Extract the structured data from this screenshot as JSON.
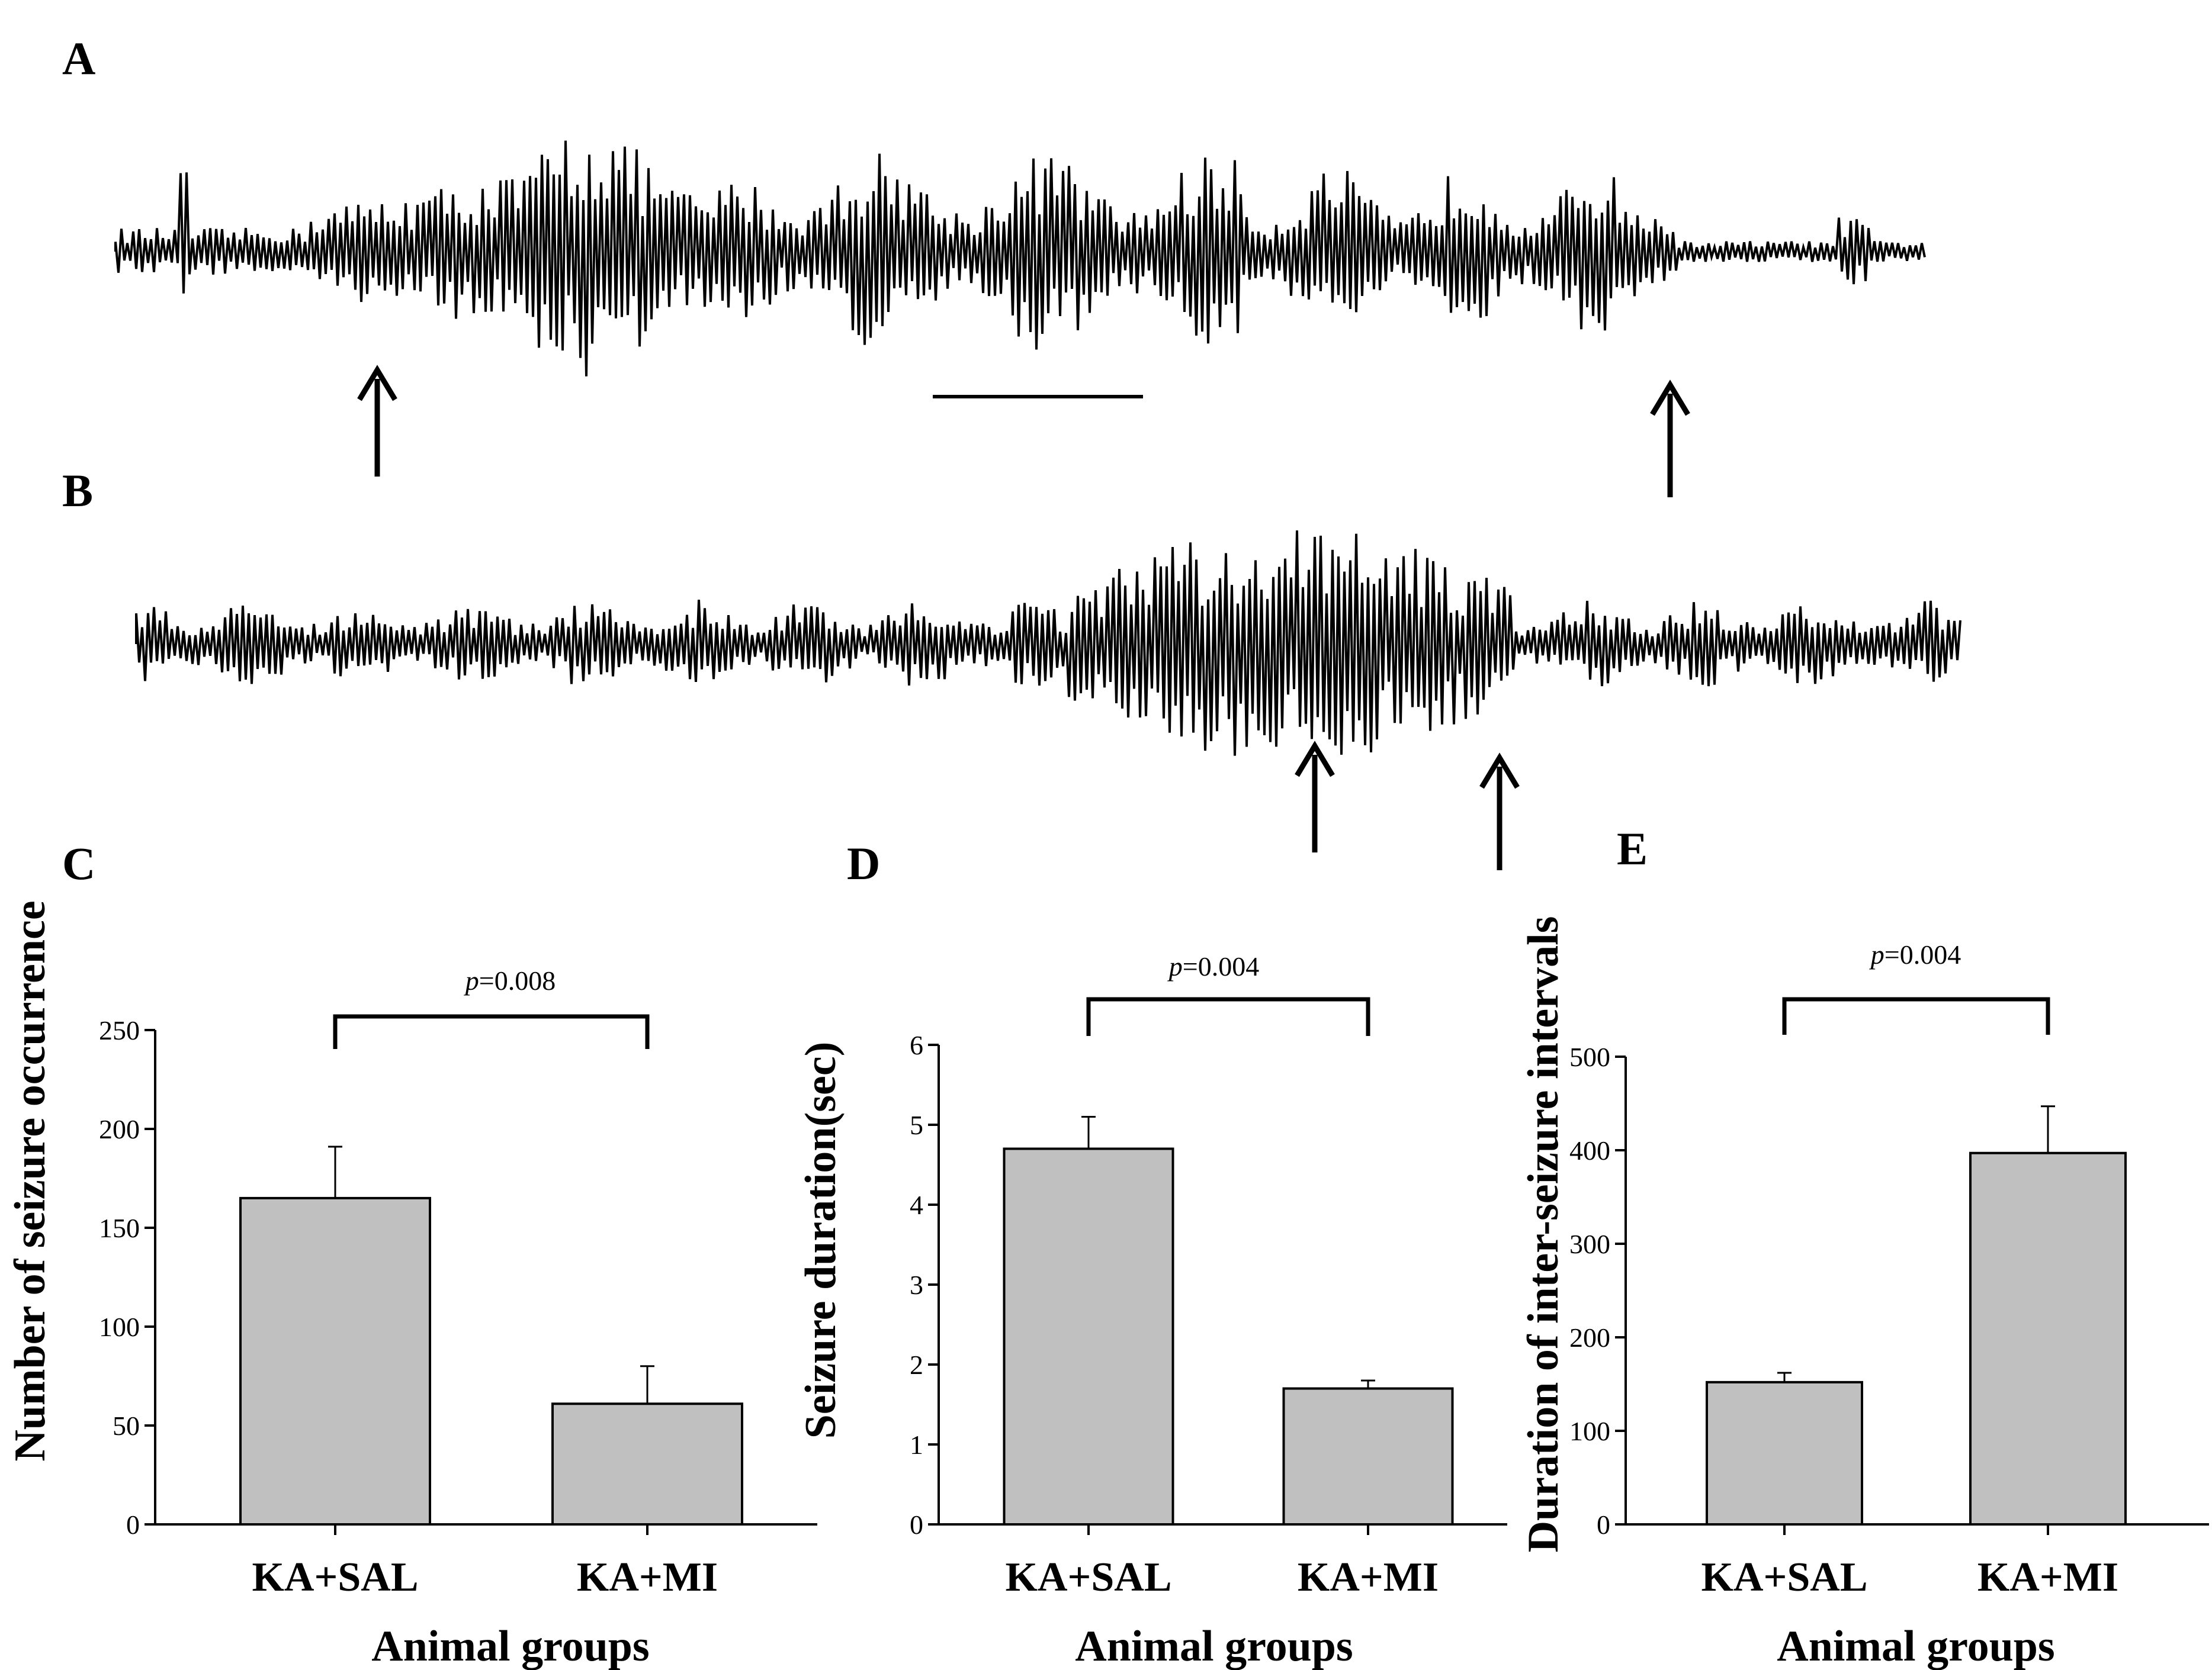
{
  "panels": {
    "a_letter": "A",
    "b_letter": "B"
  },
  "chart_data": [
    {
      "type": "bar",
      "panel": "C",
      "categories": [
        "KA+SAL",
        "KA+MI"
      ],
      "values": [
        165,
        61
      ],
      "errors": [
        26,
        19
      ],
      "xlabel": "Animal groups",
      "ylabel": "Number of seizure occurrence",
      "ylim": [
        0,
        250
      ],
      "yticks": [
        "0",
        "50",
        "100",
        "150",
        "200",
        "250"
      ],
      "significance": {
        "p_symbol": "p",
        "p_value": "=0.008"
      },
      "bar_color": "#c0c0c0",
      "grid": false
    },
    {
      "type": "bar",
      "panel": "D",
      "categories": [
        "KA+SAL",
        "KA+MI"
      ],
      "values": [
        4.7,
        1.7
      ],
      "errors": [
        0.4,
        0.1
      ],
      "xlabel": "Animal groups",
      "ylabel": "Seizure duration(sec)",
      "ylim": [
        0,
        6
      ],
      "yticks": [
        "0",
        "1",
        "2",
        "3",
        "4",
        "5",
        "6"
      ],
      "significance": {
        "p_symbol": "p",
        "p_value": "=0.004"
      },
      "bar_color": "#c0c0c0",
      "grid": false
    },
    {
      "type": "bar",
      "panel": "E",
      "categories": [
        "KA+SAL",
        "KA+MI"
      ],
      "values": [
        152,
        397
      ],
      "errors": [
        10,
        50
      ],
      "xlabel": "Animal groups",
      "ylabel": "Duration of inter-seizure intervals",
      "ylim": [
        0,
        500
      ],
      "yticks": [
        "0",
        "100",
        "200",
        "300",
        "400",
        "500"
      ],
      "significance": {
        "p_symbol": "p",
        "p_value": "=0.004"
      },
      "bar_color": "#c0c0c0",
      "grid": false
    }
  ]
}
